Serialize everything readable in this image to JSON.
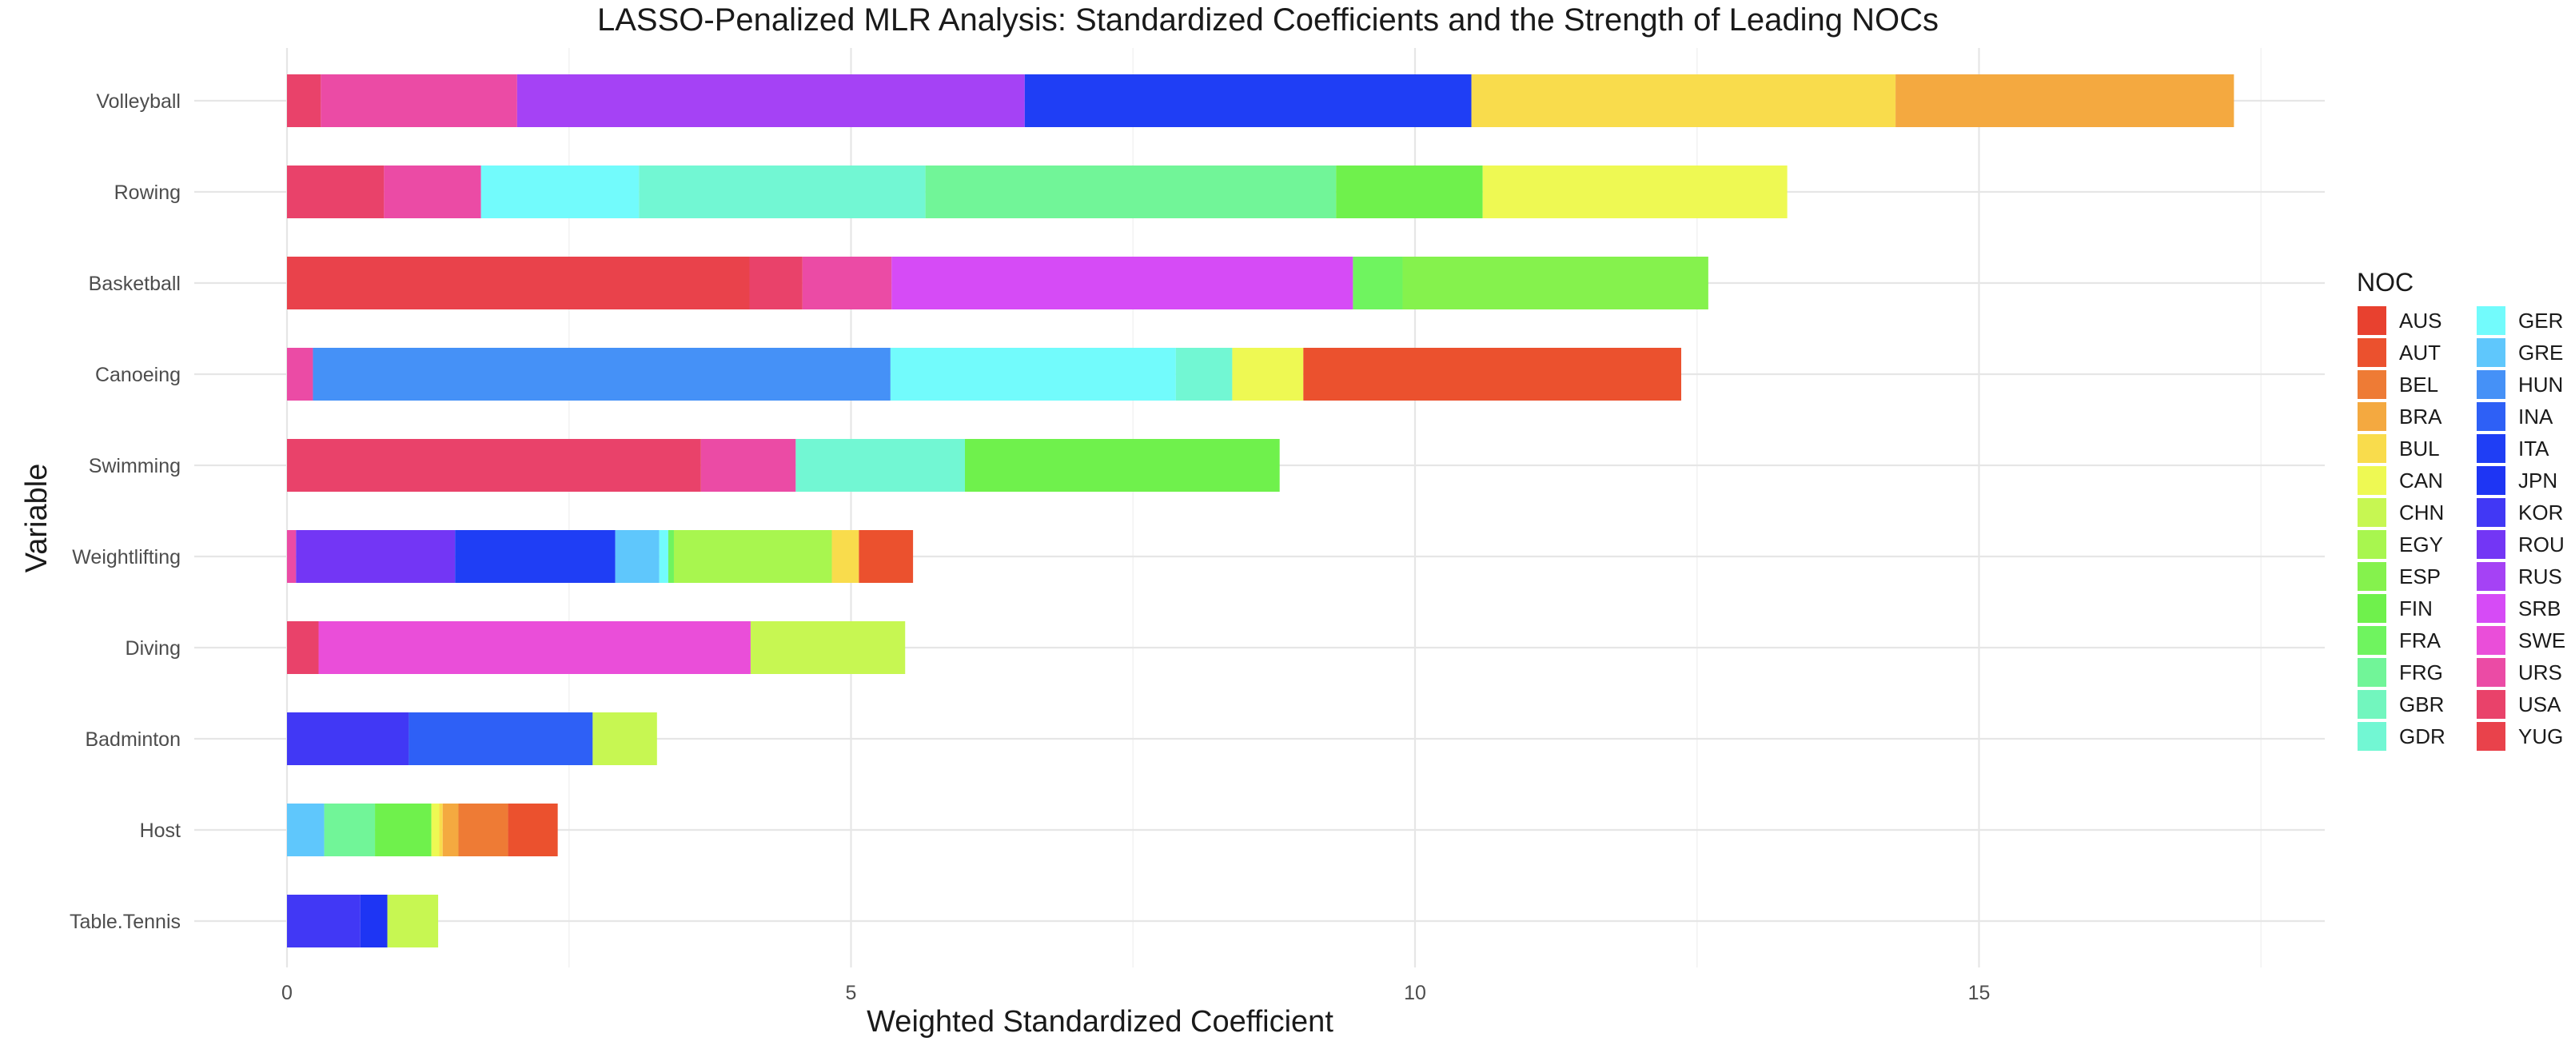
{
  "chart_data": {
    "type": "bar",
    "orientation": "horizontal",
    "stacked": true,
    "title": "LASSO-Penalized MLR Analysis: Standardized Coefficients and the Strength of Leading NOCs",
    "xlabel": "Weighted Standardized Coefficient",
    "ylabel": "Variable",
    "xlim": [
      -0.9,
      18.1
    ],
    "x_ticks": [
      0,
      5,
      10,
      15
    ],
    "grid": true,
    "legend_title": "NOC",
    "legend_position": "right",
    "noc_colors": {
      "AUS": "#E8412F",
      "AUT": "#EB512E",
      "BEL": "#EE7B35",
      "BRA": "#F4A940",
      "BUL": "#F9DC4C",
      "CAN": "#EEF953",
      "CHN": "#C7F752",
      "EGY": "#A8F64F",
      "ESP": "#85F24D",
      "FIN": "#6FF14C",
      "FRA": "#6FF45F",
      "FRG": "#71F598",
      "GBR": "#72F6BE",
      "GDR": "#72F7D3",
      "GER": "#72FBFC",
      "GRE": "#5FC7FC",
      "HUN": "#4591F7",
      "INA": "#2E60F6",
      "ITA": "#1F3EF5",
      "JPN": "#1E35F4",
      "KOR": "#4138F5",
      "ROU": "#7336F5",
      "RUS": "#A542F5",
      "SRB": "#D64BF6",
      "SWE": "#EA4ED9",
      "URS": "#EB4BA5",
      "USA": "#E9426A",
      "YUG": "#E9424B"
    },
    "legend_columns": [
      [
        "AUS",
        "AUT",
        "BEL",
        "BRA",
        "BUL",
        "CAN",
        "CHN",
        "EGY",
        "ESP",
        "FIN",
        "FRA",
        "FRG",
        "GBR",
        "GDR"
      ],
      [
        "GER",
        "GRE",
        "HUN",
        "INA",
        "ITA",
        "JPN",
        "KOR",
        "ROU",
        "RUS",
        "SRB",
        "SWE",
        "URS",
        "USA",
        "YUG"
      ]
    ],
    "categories": [
      "Volleyball",
      "Rowing",
      "Basketball",
      "Canoeing",
      "Swimming",
      "Weightlifting",
      "Diving",
      "Badminton",
      "Host",
      "Table.Tennis"
    ],
    "bars": [
      {
        "category": "Volleyball",
        "segments": [
          {
            "noc": "USA",
            "value": 0.3
          },
          {
            "noc": "URS",
            "value": 1.74
          },
          {
            "noc": "RUS",
            "value": 4.5
          },
          {
            "noc": "ITA",
            "value": 3.96
          },
          {
            "noc": "BUL",
            "value": 3.76
          },
          {
            "noc": "BRA",
            "value": 3.0
          }
        ]
      },
      {
        "category": "Rowing",
        "segments": [
          {
            "noc": "USA",
            "value": 0.86
          },
          {
            "noc": "URS",
            "value": 0.86
          },
          {
            "noc": "GER",
            "value": 1.4
          },
          {
            "noc": "GDR",
            "value": 2.54
          },
          {
            "noc": "FRG",
            "value": 3.64
          },
          {
            "noc": "FIN",
            "value": 1.3
          },
          {
            "noc": "CAN",
            "value": 2.7
          }
        ]
      },
      {
        "category": "Basketball",
        "segments": [
          {
            "noc": "YUG",
            "value": 4.1
          },
          {
            "noc": "USA",
            "value": 0.47
          },
          {
            "noc": "URS",
            "value": 0.79
          },
          {
            "noc": "SRB",
            "value": 4.09
          },
          {
            "noc": "FRA",
            "value": 0.44
          },
          {
            "noc": "ESP",
            "value": 2.71
          }
        ]
      },
      {
        "category": "Canoeing",
        "segments": [
          {
            "noc": "URS",
            "value": 0.23
          },
          {
            "noc": "HUN",
            "value": 5.12
          },
          {
            "noc": "GER",
            "value": 2.53
          },
          {
            "noc": "GDR",
            "value": 0.5
          },
          {
            "noc": "CAN",
            "value": 0.63
          },
          {
            "noc": "AUT",
            "value": 3.35
          }
        ]
      },
      {
        "category": "Swimming",
        "segments": [
          {
            "noc": "USA",
            "value": 3.67
          },
          {
            "noc": "URS",
            "value": 0.84
          },
          {
            "noc": "GDR",
            "value": 1.5
          },
          {
            "noc": "FIN",
            "value": 2.79
          }
        ]
      },
      {
        "category": "Weightlifting",
        "segments": [
          {
            "noc": "URS",
            "value": 0.08
          },
          {
            "noc": "ROU",
            "value": 1.41
          },
          {
            "noc": "ITA",
            "value": 1.42
          },
          {
            "noc": "GRE",
            "value": 0.39
          },
          {
            "noc": "GER",
            "value": 0.08
          },
          {
            "noc": "FRA",
            "value": 0.05
          },
          {
            "noc": "EGY",
            "value": 1.4
          },
          {
            "noc": "BUL",
            "value": 0.24
          },
          {
            "noc": "AUT",
            "value": 0.48
          }
        ]
      },
      {
        "category": "Diving",
        "segments": [
          {
            "noc": "USA",
            "value": 0.28
          },
          {
            "noc": "SWE",
            "value": 3.83
          },
          {
            "noc": "CHN",
            "value": 1.37
          }
        ]
      },
      {
        "category": "Badminton",
        "segments": [
          {
            "noc": "KOR",
            "value": 1.08
          },
          {
            "noc": "INA",
            "value": 1.63
          },
          {
            "noc": "CHN",
            "value": 0.57
          }
        ]
      },
      {
        "category": "Host",
        "segments": [
          {
            "noc": "GRE",
            "value": 0.33
          },
          {
            "noc": "FRG",
            "value": 0.45
          },
          {
            "noc": "FIN",
            "value": 0.5
          },
          {
            "noc": "CAN",
            "value": 0.07
          },
          {
            "noc": "BUL",
            "value": 0.03
          },
          {
            "noc": "BRA",
            "value": 0.14
          },
          {
            "noc": "BEL",
            "value": 0.44
          },
          {
            "noc": "AUT",
            "value": 0.44
          }
        ]
      },
      {
        "category": "Table.Tennis",
        "segments": [
          {
            "noc": "KOR",
            "value": 0.65
          },
          {
            "noc": "JPN",
            "value": 0.24
          },
          {
            "noc": "CHN",
            "value": 0.45
          }
        ]
      }
    ]
  }
}
